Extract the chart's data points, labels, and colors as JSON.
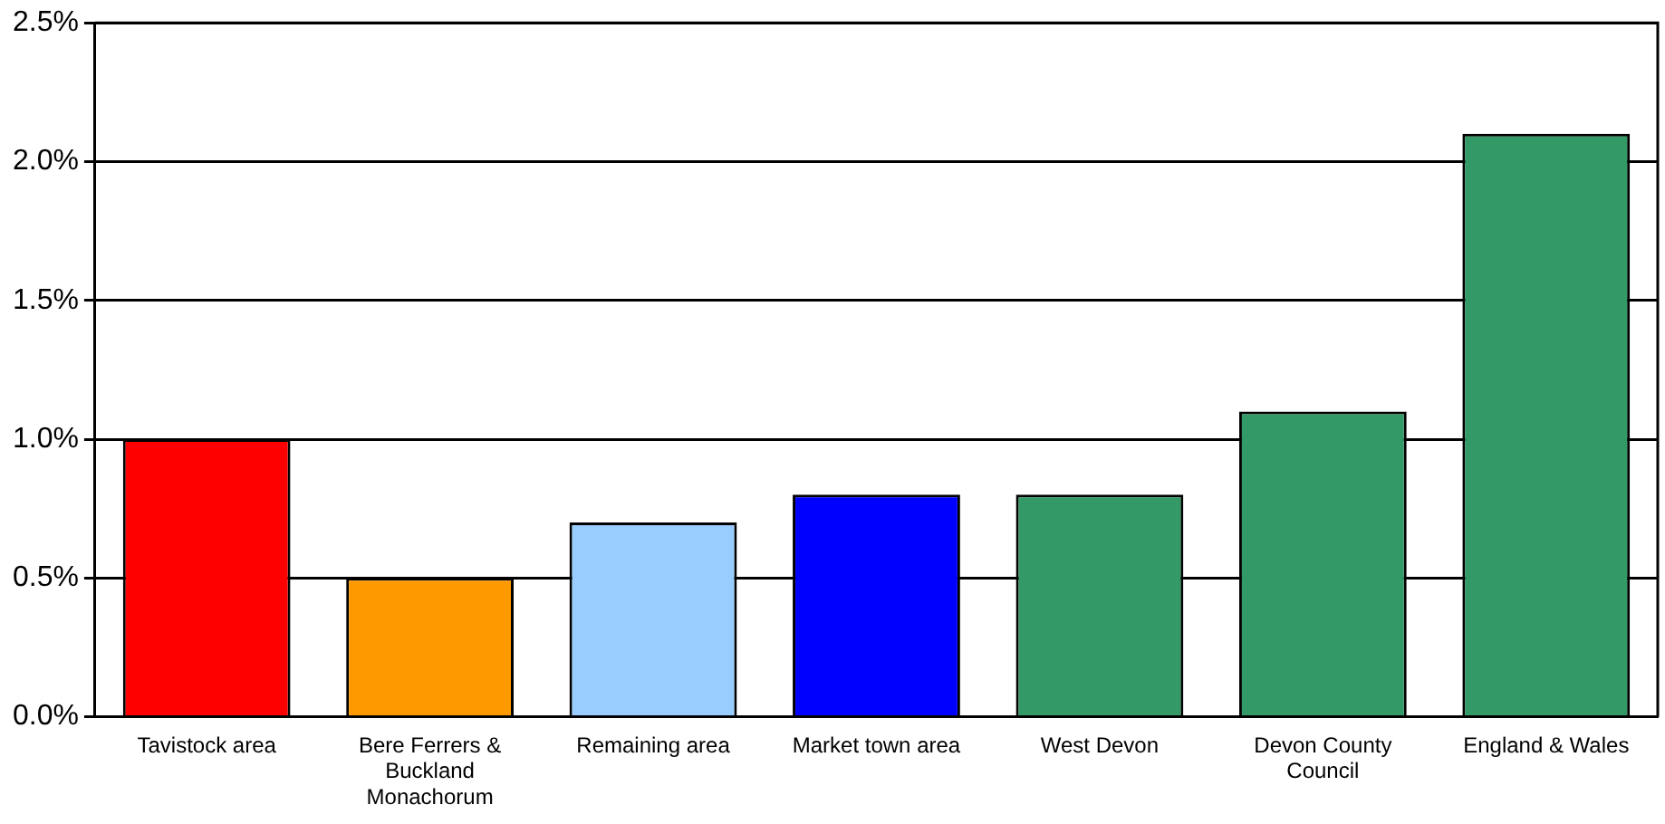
{
  "chart_data": {
    "type": "bar",
    "categories": [
      "Tavistock area",
      "Bere Ferrers & Buckland Monachorum",
      "Remaining area",
      "Market town area",
      "West Devon",
      "Devon County Council",
      "England & Wales"
    ],
    "values": [
      1.0,
      0.5,
      0.7,
      0.8,
      0.8,
      1.1,
      2.1
    ],
    "colors": [
      "#ff0000",
      "#ff9900",
      "#99ccff",
      "#0000ff",
      "#339966",
      "#339966",
      "#339966"
    ],
    "ylim": [
      0,
      2.5
    ],
    "yticks": [
      {
        "value": 0,
        "label": "0.0%"
      },
      {
        "value": 0.5,
        "label": "0.5%"
      },
      {
        "value": 1,
        "label": "1.0%"
      },
      {
        "value": 1.5,
        "label": "1.5%"
      },
      {
        "value": 2,
        "label": "2.0%"
      },
      {
        "value": 2.5,
        "label": "2.5%"
      }
    ],
    "grid": "y",
    "legend": false
  }
}
